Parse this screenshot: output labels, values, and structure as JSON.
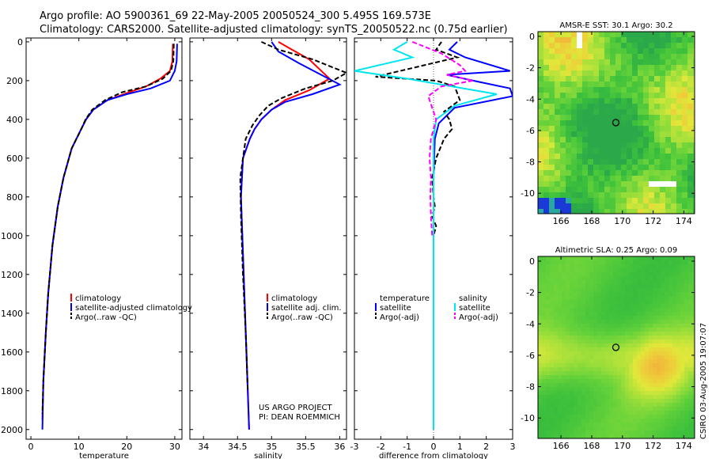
{
  "title_line1": "Argo profile: AO 5900361_69 22-May-2005 20050524_300 5.495S 169.573E",
  "title_line2": "Climatology: CARS2000. Satellite-adjusted climatology: synTS_20050522.nc (0.75d earlier)",
  "credit": "CSIRO 03-Aug-2005 19:07:07",
  "project_line1": "US ARGO PROJECT",
  "project_line2": "PI: DEAN ROEMMICH",
  "colors": {
    "climatology": "#ff0000",
    "satellite": "#0000ff",
    "argo": "#000000",
    "salinity_sat": "#00e5ee",
    "argo_adj_sal": "#ff00ff"
  },
  "chart_data": [
    {
      "type": "line",
      "name": "temperature",
      "xlabel": "temperature",
      "ylabel": "",
      "xlim": [
        -1,
        31.5
      ],
      "ylim": [
        2050,
        -20
      ],
      "xticks": [
        0,
        10,
        20,
        30
      ],
      "yticks": [
        0,
        200,
        400,
        600,
        800,
        1000,
        1200,
        1400,
        1600,
        1800,
        2000
      ],
      "legend": {
        "position": "bottom-right",
        "entries": [
          "climatology",
          "satellite-adjusted climatology",
          "Argo(..raw -QC)"
        ]
      },
      "series": [
        {
          "name": "climatology",
          "color": "#ff0000",
          "x": [
            29.6,
            29.5,
            29.0,
            27.0,
            24.0,
            20.5,
            16.0,
            13.0,
            11.5,
            10.5,
            8.5,
            6.8,
            5.6,
            4.5,
            3.6,
            3.1,
            2.6,
            2.4
          ],
          "y": [
            10,
            100,
            150,
            190,
            230,
            260,
            300,
            350,
            400,
            450,
            550,
            700,
            850,
            1050,
            1300,
            1500,
            1750,
            1950
          ]
        },
        {
          "name": "satellite",
          "color": "#0000ff",
          "x": [
            30.5,
            30.4,
            30.0,
            29.0,
            25.0,
            20.0,
            16.0,
            13.0,
            11.5,
            10.5,
            8.5,
            6.8,
            5.6,
            4.5,
            3.6,
            3.1,
            2.6,
            2.4
          ],
          "y": [
            10,
            100,
            150,
            200,
            240,
            270,
            300,
            350,
            400,
            450,
            550,
            700,
            850,
            1050,
            1300,
            1500,
            1750,
            2000
          ]
        },
        {
          "name": "Argo",
          "color": "#000000",
          "dashed": true,
          "x": [
            29.8,
            29.7,
            29.2,
            27.5,
            24.0,
            19.0,
            15.5,
            12.8,
            11.4,
            10.5,
            8.5,
            6.8,
            5.6,
            4.5,
            3.6,
            3.1,
            2.6,
            2.4
          ],
          "y": [
            10,
            100,
            150,
            190,
            230,
            260,
            300,
            350,
            400,
            450,
            550,
            700,
            850,
            1050,
            1300,
            1500,
            1750,
            1920
          ]
        }
      ]
    },
    {
      "type": "line",
      "name": "salinity",
      "xlabel": "salinity",
      "ylabel": "",
      "xlim": [
        33.8,
        36.1
      ],
      "ylim": [
        2050,
        -20
      ],
      "xticks": [
        34,
        34.5,
        35,
        35.5,
        36
      ],
      "yticks": [
        0,
        200,
        400,
        600,
        800,
        1000,
        1200,
        1400,
        1600,
        1800,
        2000
      ],
      "legend": {
        "position": "bottom-right",
        "entries": [
          "climatology",
          "satellite adj. clim.",
          "Argo(..raw -QC)"
        ]
      },
      "series": [
        {
          "name": "climatology",
          "color": "#ff0000",
          "x": [
            35.1,
            35.3,
            35.55,
            35.85,
            35.55,
            35.2,
            35.0,
            34.85,
            34.75,
            34.68,
            34.58,
            34.55,
            34.57,
            34.6,
            34.63,
            34.65,
            34.67
          ],
          "y": [
            0,
            40,
            90,
            190,
            250,
            300,
            350,
            400,
            450,
            500,
            600,
            800,
            1000,
            1300,
            1600,
            1800,
            2000
          ]
        },
        {
          "name": "satellite",
          "color": "#0000ff",
          "x": [
            35.0,
            35.1,
            35.4,
            36.0,
            35.6,
            35.2,
            35.0,
            34.85,
            34.75,
            34.68,
            34.58,
            34.55,
            34.57,
            34.6,
            34.63,
            34.65,
            34.67
          ],
          "y": [
            0,
            50,
            110,
            220,
            270,
            310,
            350,
            400,
            450,
            500,
            600,
            800,
            1000,
            1300,
            1600,
            1800,
            2000
          ]
        },
        {
          "name": "Argo",
          "color": "#000000",
          "dashed": true,
          "x": [
            34.85,
            35.1,
            35.6,
            36.1,
            35.9,
            35.5,
            35.15,
            34.95,
            34.82,
            34.72,
            34.62,
            34.54,
            34.55,
            34.58,
            34.62,
            34.65
          ],
          "y": [
            0,
            40,
            90,
            160,
            200,
            240,
            290,
            330,
            380,
            430,
            500,
            700,
            900,
            1200,
            1500,
            1800
          ]
        }
      ]
    },
    {
      "type": "line",
      "name": "difference",
      "xlabel": "difference from climatology",
      "ylabel": "",
      "xlim": [
        -3,
        3
      ],
      "ylim": [
        2050,
        -20
      ],
      "xticks": [
        -3,
        -2,
        -1,
        0,
        1,
        2,
        3
      ],
      "yticks": [
        0,
        200,
        400,
        600,
        800,
        1000,
        1200,
        1400,
        1600,
        1800,
        2000
      ],
      "legend": {
        "position": "bottom",
        "entries": [
          "temperature",
          "satellite",
          "Argo(-adj)",
          "salinity",
          "satellite",
          "Argo(-adj)"
        ]
      },
      "series": [
        {
          "name": "temperature satellite",
          "color": "#0000ff",
          "x": [
            0.9,
            0.6,
            1.2,
            2.9,
            0.5,
            1.5,
            2.9,
            3.0,
            0.8,
            0.2,
            0.05,
            0,
            0,
            0,
            0
          ],
          "y": [
            0,
            40,
            80,
            150,
            170,
            200,
            240,
            280,
            340,
            420,
            500,
            700,
            1000,
            1500,
            2000
          ]
        },
        {
          "name": "temperature Argo(-adj)",
          "color": "#000000",
          "dashed": true,
          "x": [
            0.3,
            0.1,
            0.9,
            -2.2,
            0.1,
            0.8,
            1.0,
            0.4,
            0.6,
            0.7,
            0.4,
            0.1,
            -0.05,
            0.0,
            0.05,
            -0.05,
            0.1,
            0.0
          ],
          "y": [
            0,
            40,
            80,
            180,
            200,
            230,
            300,
            360,
            400,
            450,
            500,
            600,
            700,
            800,
            850,
            900,
            950,
            1000
          ]
        },
        {
          "name": "salinity satellite",
          "color": "#00e5ee",
          "x": [
            -1.0,
            -1.5,
            -0.8,
            -3.0,
            -1.0,
            2.4,
            0.8,
            0.1,
            0,
            0,
            0,
            0,
            0
          ],
          "y": [
            0,
            40,
            80,
            150,
            190,
            270,
            330,
            400,
            500,
            700,
            1000,
            1500,
            2000
          ]
        },
        {
          "name": "salinity Argo(-adj)",
          "color": "#ff00ff",
          "dashed": true,
          "x": [
            -0.8,
            0.3,
            1.0,
            1.2,
            0.5,
            1.5,
            0.3,
            -0.2,
            0.1,
            -0.1,
            -0.15,
            -0.1,
            -0.12,
            -0.1,
            -0.05
          ],
          "y": [
            0,
            60,
            120,
            150,
            170,
            200,
            230,
            280,
            400,
            500,
            600,
            700,
            800,
            900,
            1000
          ]
        }
      ]
    },
    {
      "type": "heatmap",
      "name": "sst_map",
      "title": "AMSR-E SST: 30.1 Argo: 30.2",
      "xlim": [
        164.5,
        174.7
      ],
      "ylim": [
        -11.3,
        0.3
      ],
      "xticks": [
        166,
        168,
        170,
        172,
        174
      ],
      "yticks": [
        0,
        -2,
        -4,
        -6,
        -8,
        -10
      ],
      "profile_location": {
        "lon": 169.573,
        "lat": -5.495
      }
    },
    {
      "type": "heatmap",
      "name": "sla_map",
      "title": "Altimetric SLA: 0.25 Argo: 0.09",
      "xlim": [
        164.5,
        174.7
      ],
      "ylim": [
        -11.3,
        0.3
      ],
      "xticks": [
        166,
        168,
        170,
        172,
        174
      ],
      "yticks": [
        0,
        -2,
        -4,
        -6,
        -8,
        -10
      ],
      "profile_location": {
        "lon": 169.573,
        "lat": -5.495
      }
    }
  ]
}
